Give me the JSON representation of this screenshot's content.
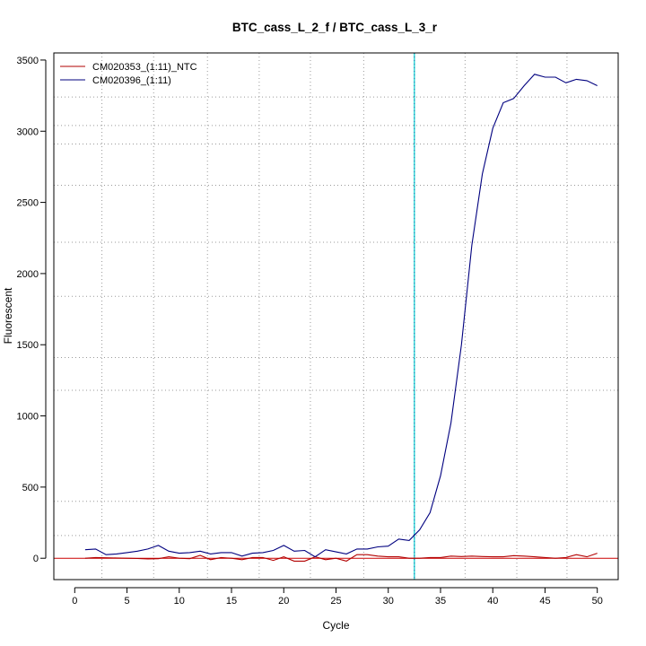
{
  "chart_data": {
    "type": "line",
    "title": "BTC_cass_L_2_f / BTC_cass_L_3_r",
    "xlabel": "Cycle",
    "ylabel": "Fluorescent",
    "xlim": [
      -2,
      52
    ],
    "ylim": [
      -150,
      3550
    ],
    "xticks": [
      "0",
      "5",
      "10",
      "15",
      "20",
      "25",
      "30",
      "35",
      "40",
      "45",
      "50"
    ],
    "yticks": [
      "0",
      "500",
      "1000",
      "1500",
      "2000",
      "2500",
      "3000",
      "3500"
    ],
    "grid": true,
    "legend_position": "top-left",
    "threshold_cycle": 32.5,
    "colors": {
      "threshold": "#00cccc",
      "baseline": "#cc0000",
      "grid": "#9a9a9a"
    },
    "series": [
      {
        "name": "CM020353_(1:11)_NTC",
        "color": "#b20000",
        "x": [
          1,
          2,
          3,
          4,
          5,
          6,
          7,
          8,
          9,
          10,
          11,
          12,
          13,
          14,
          15,
          16,
          17,
          18,
          19,
          20,
          21,
          22,
          23,
          24,
          25,
          26,
          27,
          28,
          29,
          30,
          31,
          32,
          33,
          34,
          35,
          36,
          37,
          38,
          39,
          40,
          41,
          42,
          43,
          44,
          45,
          46,
          47,
          48,
          49,
          50
        ],
        "y": [
          0,
          5,
          3,
          2,
          0,
          -2,
          -5,
          -3,
          10,
          0,
          -3,
          20,
          -10,
          5,
          0,
          -10,
          5,
          5,
          -15,
          10,
          -20,
          -20,
          10,
          -10,
          0,
          -20,
          25,
          25,
          15,
          10,
          10,
          0,
          0,
          5,
          5,
          15,
          12,
          15,
          12,
          10,
          10,
          18,
          15,
          10,
          5,
          0,
          5,
          25,
          10,
          35
        ]
      },
      {
        "name": "CM020396_(1:11)",
        "color": "#00007f",
        "x": [
          1,
          2,
          3,
          4,
          5,
          6,
          7,
          8,
          9,
          10,
          11,
          12,
          13,
          14,
          15,
          16,
          17,
          18,
          19,
          20,
          21,
          22,
          23,
          24,
          25,
          26,
          27,
          28,
          29,
          30,
          31,
          32,
          33,
          34,
          35,
          36,
          37,
          38,
          39,
          40,
          41,
          42,
          43,
          44,
          45,
          46,
          47,
          48,
          49,
          50
        ],
        "y": [
          60,
          65,
          25,
          30,
          40,
          50,
          65,
          90,
          50,
          35,
          40,
          50,
          30,
          40,
          40,
          15,
          35,
          40,
          55,
          90,
          50,
          55,
          10,
          60,
          45,
          30,
          65,
          65,
          80,
          85,
          135,
          125,
          200,
          320,
          580,
          950,
          1500,
          2200,
          2700,
          3020,
          3200,
          3230,
          3320,
          3400,
          3380,
          3380,
          3340,
          3365,
          3355,
          3320
        ]
      }
    ]
  }
}
